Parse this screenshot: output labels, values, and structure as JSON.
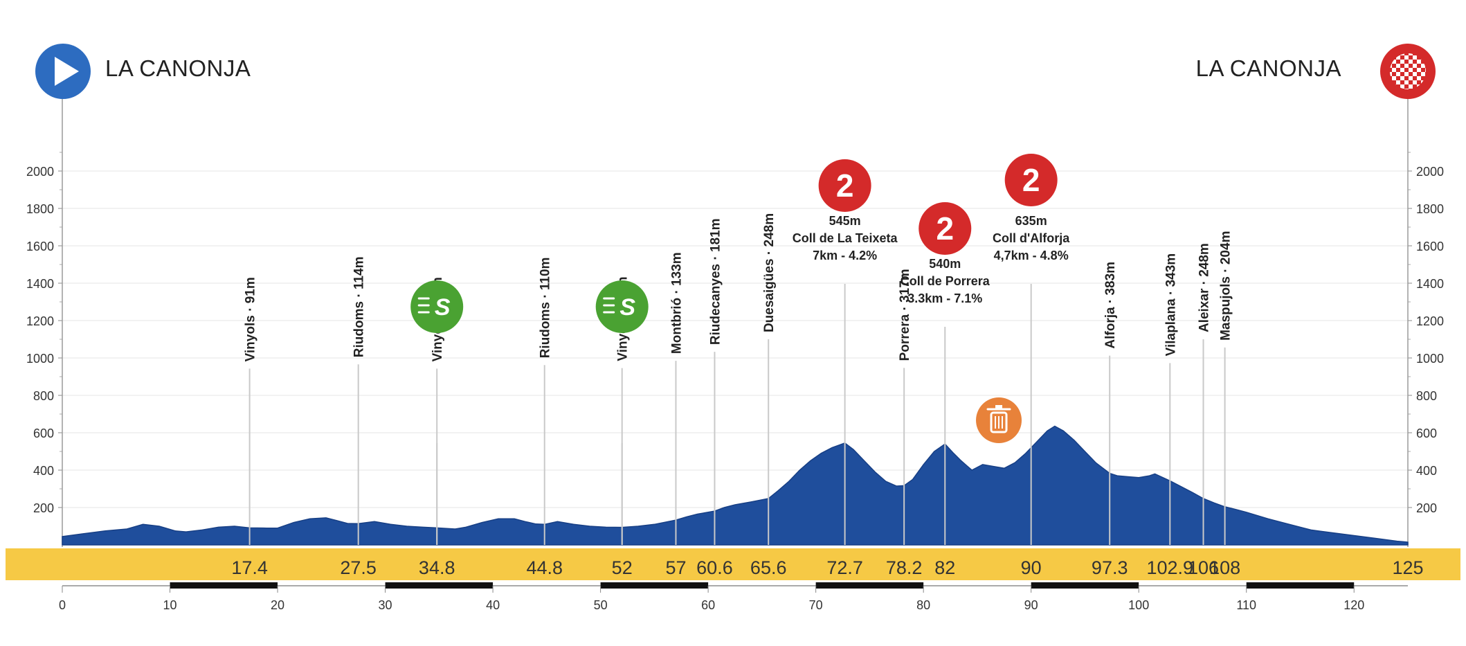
{
  "header": {
    "start_town": "LA CANONJA",
    "finish_town": "LA CANONJA",
    "start_icon": "start-play-icon",
    "finish_icon": "finish-checkered-flag-icon"
  },
  "colors": {
    "profile_fill": "#1f4e9c",
    "profile_line": "#173f85",
    "km_band": "#f6c945",
    "kom_badge": "#d42a2a",
    "sprint_badge": "#4aa232",
    "trash_badge": "#e8823a",
    "axis_text": "#333333"
  },
  "chart_data": {
    "type": "area",
    "title": "",
    "xlabel": "",
    "ylabel": "",
    "xlim": [
      0,
      125
    ],
    "ylim": [
      0,
      2200
    ],
    "y_ticks": [
      200,
      400,
      600,
      800,
      1000,
      1200,
      1400,
      1600,
      1800,
      2000
    ],
    "x_ticks": [
      0,
      10,
      20,
      30,
      40,
      50,
      60,
      70,
      80,
      90,
      100,
      110,
      120
    ],
    "grid": true,
    "profile": {
      "x": [
        0,
        2,
        4,
        6,
        7.5,
        9,
        10.5,
        11.5,
        13,
        14.5,
        16,
        17.4,
        19,
        20,
        21.5,
        23,
        24.5,
        25.5,
        26.5,
        27.5,
        29,
        30.5,
        32,
        33.5,
        34.8,
        36.5,
        37.5,
        39,
        40.5,
        42,
        43,
        44,
        44.8,
        46,
        47.5,
        49,
        50.5,
        52,
        53.5,
        55,
        57,
        58,
        59,
        60.6,
        61.5,
        62.5,
        64,
        65.6,
        66.5,
        67.5,
        68.5,
        69.5,
        70.5,
        71.5,
        72.7,
        73.5,
        74.5,
        75.5,
        76.5,
        77.5,
        78.2,
        79,
        80,
        81,
        82,
        82.8,
        83.5,
        84.5,
        85.5,
        86.5,
        87.5,
        88.5,
        89.5,
        90.5,
        91.5,
        92.2,
        93,
        94,
        95,
        96,
        97.3,
        98,
        99,
        100,
        101,
        101.5,
        102.9,
        104,
        105,
        106,
        107,
        108,
        109,
        110,
        112,
        114,
        116,
        118,
        120,
        122,
        124,
        125
      ],
      "y": [
        45,
        60,
        75,
        85,
        110,
        100,
        75,
        70,
        80,
        95,
        100,
        91,
        90,
        90,
        120,
        140,
        145,
        130,
        115,
        114,
        125,
        110,
        100,
        95,
        91,
        85,
        95,
        120,
        140,
        140,
        125,
        112,
        110,
        125,
        110,
        100,
        95,
        94,
        100,
        110,
        133,
        150,
        165,
        181,
        200,
        215,
        230,
        248,
        290,
        340,
        400,
        450,
        490,
        520,
        545,
        510,
        450,
        390,
        340,
        315,
        317,
        350,
        430,
        500,
        540,
        490,
        450,
        400,
        430,
        420,
        410,
        440,
        490,
        550,
        610,
        635,
        610,
        560,
        500,
        440,
        383,
        370,
        365,
        360,
        370,
        380,
        343,
        310,
        280,
        248,
        225,
        204,
        190,
        175,
        140,
        110,
        80,
        65,
        50,
        35,
        20,
        15
      ]
    },
    "waypoints": [
      {
        "km": 17.4,
        "name": "Vinyols · 91m",
        "alt": 91
      },
      {
        "km": 27.5,
        "name": "Riudoms · 114m",
        "alt": 114
      },
      {
        "km": 34.8,
        "name": "Vinyols · 91m",
        "alt": 91
      },
      {
        "km": 44.8,
        "name": "Riudoms · 110m",
        "alt": 110
      },
      {
        "km": 52,
        "name": "Vinyols · 94m",
        "alt": 94
      },
      {
        "km": 57,
        "name": "Montbrió · 133m",
        "alt": 133
      },
      {
        "km": 60.6,
        "name": "Riudecanyes · 181m",
        "alt": 181
      },
      {
        "km": 65.6,
        "name": "Duesaigües · 248m",
        "alt": 248
      },
      {
        "km": 78.2,
        "name": "Porrera · 317m",
        "alt": 317
      },
      {
        "km": 97.3,
        "name": "Alforja · 383m",
        "alt": 383
      },
      {
        "km": 102.9,
        "name": "Vilaplana · 343m",
        "alt": 343
      },
      {
        "km": 106,
        "name": "Aleixar · 248m",
        "alt": 248
      },
      {
        "km": 108,
        "name": "Maspujols · 204m",
        "alt": 204
      }
    ],
    "sprints": [
      {
        "km": 34.8,
        "badge": "S",
        "icon": "sprint-icon"
      },
      {
        "km": 52,
        "badge": "S",
        "icon": "sprint-icon"
      }
    ],
    "climbs": [
      {
        "km": 72.7,
        "category": "2",
        "lines": [
          "545m",
          "Coll de La Teixeta",
          "7km - 4.2%"
        ]
      },
      {
        "km": 82,
        "category": "2",
        "lines": [
          "540m",
          "Coll de Porrera",
          "3.3km - 7.1%"
        ]
      },
      {
        "km": 90,
        "category": "2",
        "lines": [
          "635m",
          "Coll d'Alforja",
          "4,7km - 4.8%"
        ]
      }
    ],
    "feed_zone": {
      "km": 87,
      "icon": "trash-icon"
    },
    "km_band_labels": [
      "17.4",
      "27.5",
      "34.8",
      "44.8",
      "52",
      "57",
      "60.6",
      "65.6",
      "72.7",
      "78.2",
      "82",
      "90",
      "97.3",
      "102.9",
      "106",
      "108",
      "125"
    ],
    "km_band_positions": [
      17.4,
      27.5,
      34.8,
      44.8,
      52,
      57,
      60.6,
      65.6,
      72.7,
      78.2,
      82,
      90,
      97.3,
      102.9,
      106,
      108,
      125
    ]
  }
}
